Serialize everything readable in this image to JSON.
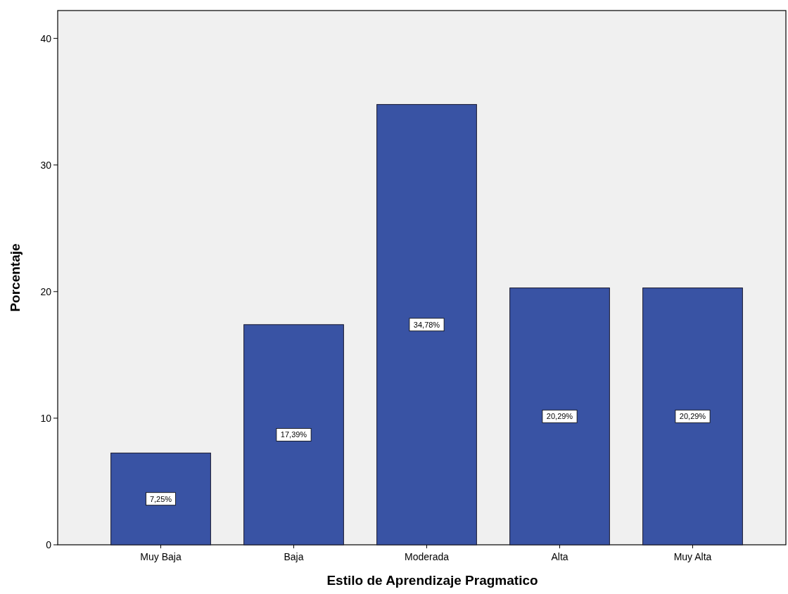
{
  "chart_data": {
    "type": "bar",
    "xlabel": "Estilo de Aprendizaje Pragmatico",
    "ylabel": "Porcentaje",
    "categories": [
      "Muy Baja",
      "Baja",
      "Moderada",
      "Alta",
      "Muy Alta"
    ],
    "values": [
      7.25,
      17.39,
      34.78,
      20.29,
      20.29
    ],
    "value_labels": [
      "7,25%",
      "17,39%",
      "34,78%",
      "20,29%",
      "20,29%"
    ],
    "color": "#3953a4",
    "ylim": [
      0,
      42.2
    ],
    "yticks": [
      0,
      10,
      20,
      30,
      40
    ],
    "grid": false
  }
}
